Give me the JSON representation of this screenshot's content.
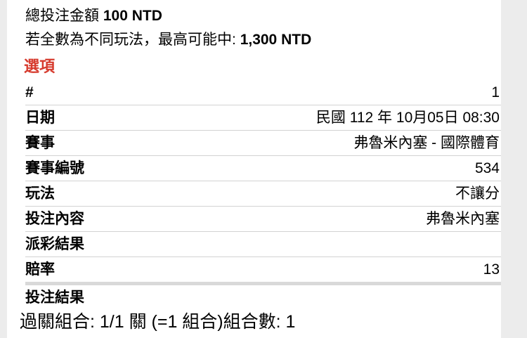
{
  "summary": {
    "total_bet_label": "總投注金額",
    "total_bet_amount": "100 NTD",
    "max_win_label": "若全數為不同玩法，最高可能中:",
    "max_win_amount": "1,300 NTD"
  },
  "section_title": "選項",
  "table": {
    "rows": [
      {
        "label": "#",
        "value": "1"
      },
      {
        "label": "日期",
        "value": "民國 112 年 10月05日 08:30"
      },
      {
        "label": "賽事",
        "value": "弗魯米內塞 - 國際體育"
      },
      {
        "label": "賽事編號",
        "value": "534"
      },
      {
        "label": "玩法",
        "value": "不讓分"
      },
      {
        "label": "投注內容",
        "value": "弗魯米內塞"
      },
      {
        "label": "派彩結果",
        "value": ""
      },
      {
        "label": "賠率",
        "value": "13"
      },
      {
        "label": "投注結果",
        "value": ""
      }
    ]
  },
  "footer": {
    "combo_text": "過關組合: 1/1 關 (=1 組合)組合數: 1"
  },
  "colors": {
    "accent_red": "#d63a2d",
    "separator": "#d2d2d2",
    "thick_separator": "#d9d9d9",
    "page_edge_grey": "#ececec"
  }
}
